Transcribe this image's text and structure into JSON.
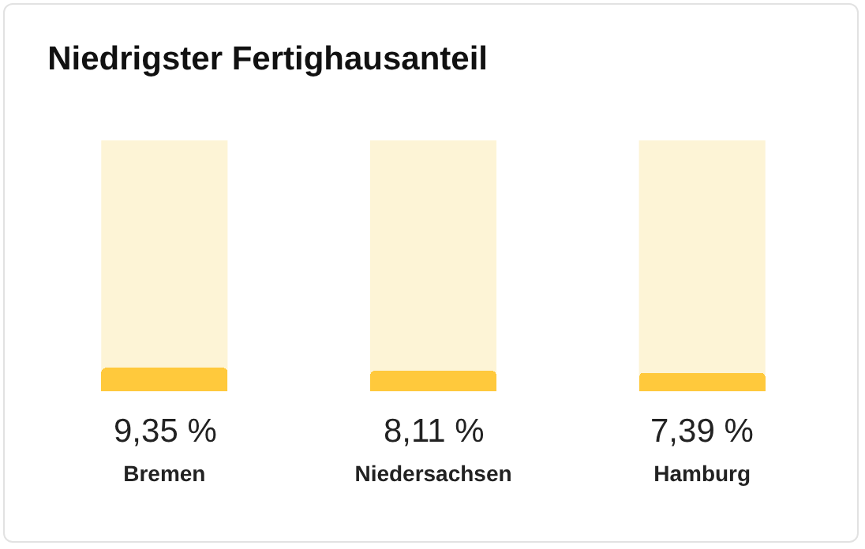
{
  "chart_data": {
    "type": "bar",
    "title": "Niedrigster Fertighausanteil",
    "categories": [
      "Bremen",
      "Niedersachsen",
      "Hamburg"
    ],
    "values": [
      9.35,
      8.11,
      7.39
    ],
    "value_labels": [
      "9,35 %",
      "8,11 %",
      "7,39 %"
    ],
    "color": "#ffc93c",
    "ylim": [
      0,
      100
    ],
    "tick_labels": "x"
  }
}
